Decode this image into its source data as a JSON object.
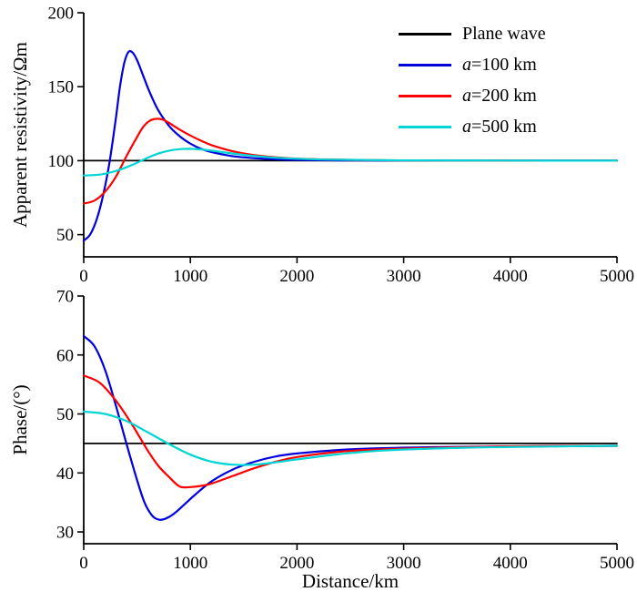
{
  "figure": {
    "background": "#ffffff"
  },
  "legend": {
    "position": "upper-right-of-top-panel",
    "entries": [
      {
        "color": "#000000",
        "parts": [
          {
            "text": "Plane wave",
            "italic": false
          }
        ]
      },
      {
        "color": "#0000dd",
        "parts": [
          {
            "text": "a",
            "italic": true
          },
          {
            "text": "=100 km",
            "italic": false
          }
        ]
      },
      {
        "color": "#ff0000",
        "parts": [
          {
            "text": "a",
            "italic": true
          },
          {
            "text": "=200 km",
            "italic": false
          }
        ]
      },
      {
        "color": "#00d5d5",
        "parts": [
          {
            "text": "a",
            "italic": true
          },
          {
            "text": "=500 km",
            "italic": false
          }
        ]
      }
    ]
  },
  "chart_data": [
    {
      "type": "line",
      "title": "",
      "ylabel": "Apparent resistivity/Ωm",
      "xlabel": "",
      "xlim": [
        0,
        5000
      ],
      "xticks": [
        0,
        1000,
        2000,
        3000,
        4000,
        5000
      ],
      "ylim": [
        35,
        200
      ],
      "yticks": [
        50,
        100,
        150,
        200
      ],
      "grid": false,
      "series": [
        {
          "name": "Plane wave",
          "color": "#000000",
          "points": [
            [
              0,
              100
            ],
            [
              5000,
              100
            ]
          ]
        },
        {
          "name": "a=100 km",
          "color": "#0000dd",
          "points": [
            [
              0,
              46
            ],
            [
              60,
              50
            ],
            [
              120,
              60
            ],
            [
              180,
              76
            ],
            [
              240,
              98
            ],
            [
              300,
              128
            ],
            [
              340,
              150
            ],
            [
              380,
              166
            ],
            [
              420,
              173.5
            ],
            [
              460,
              173
            ],
            [
              500,
              168
            ],
            [
              560,
              157
            ],
            [
              620,
              146
            ],
            [
              700,
              134
            ],
            [
              800,
              123.5
            ],
            [
              900,
              116.5
            ],
            [
              1000,
              111.5
            ],
            [
              1100,
              108
            ],
            [
              1200,
              105.8
            ],
            [
              1400,
              103
            ],
            [
              1600,
              101.7
            ],
            [
              1800,
              100.9
            ],
            [
              2000,
              100.5
            ],
            [
              2400,
              100.2
            ],
            [
              3000,
              100.05
            ],
            [
              4000,
              100
            ],
            [
              5000,
              100
            ]
          ]
        },
        {
          "name": "a=200 km",
          "color": "#ff0000",
          "points": [
            [
              0,
              71
            ],
            [
              100,
              73
            ],
            [
              200,
              79
            ],
            [
              300,
              89
            ],
            [
              400,
              103
            ],
            [
              500,
              116
            ],
            [
              560,
              123
            ],
            [
              620,
              127
            ],
            [
              680,
              128.3
            ],
            [
              740,
              127.8
            ],
            [
              800,
              125.5
            ],
            [
              900,
              121
            ],
            [
              1000,
              117
            ],
            [
              1100,
              113.5
            ],
            [
              1200,
              110.5
            ],
            [
              1400,
              106.3
            ],
            [
              1600,
              103.8
            ],
            [
              1800,
              102.3
            ],
            [
              2000,
              101.4
            ],
            [
              2400,
              100.6
            ],
            [
              3000,
              100.15
            ],
            [
              4000,
              100
            ],
            [
              5000,
              100
            ]
          ]
        },
        {
          "name": "a=500 km",
          "color": "#00d5d5",
          "points": [
            [
              0,
              90
            ],
            [
              150,
              90.6
            ],
            [
              300,
              93
            ],
            [
              450,
              97
            ],
            [
              600,
              102
            ],
            [
              700,
              104.8
            ],
            [
              800,
              106.8
            ],
            [
              900,
              107.8
            ],
            [
              1000,
              108
            ],
            [
              1100,
              107.6
            ],
            [
              1200,
              106.8
            ],
            [
              1400,
              104.8
            ],
            [
              1600,
              103.2
            ],
            [
              1800,
              102
            ],
            [
              2000,
              101.3
            ],
            [
              2400,
              100.6
            ],
            [
              3000,
              100.2
            ],
            [
              4000,
              100.05
            ],
            [
              5000,
              100
            ]
          ]
        }
      ]
    },
    {
      "type": "line",
      "title": "",
      "ylabel": "Phase/(°)",
      "xlabel": "Distance/km",
      "xlim": [
        0,
        5000
      ],
      "xticks": [
        0,
        1000,
        2000,
        3000,
        4000,
        5000
      ],
      "ylim": [
        28,
        70
      ],
      "yticks": [
        30,
        40,
        50,
        60,
        70
      ],
      "grid": false,
      "series": [
        {
          "name": "Plane wave",
          "color": "#000000",
          "points": [
            [
              0,
              45
            ],
            [
              5000,
              45
            ]
          ]
        },
        {
          "name": "a=100 km",
          "color": "#0000dd",
          "points": [
            [
              0,
              63.2
            ],
            [
              100,
              61.5
            ],
            [
              200,
              57.5
            ],
            [
              300,
              51.5
            ],
            [
              400,
              45
            ],
            [
              500,
              38.8
            ],
            [
              570,
              35
            ],
            [
              640,
              32.8
            ],
            [
              700,
              32.1
            ],
            [
              760,
              32.2
            ],
            [
              840,
              33
            ],
            [
              940,
              34.6
            ],
            [
              1050,
              36.4
            ],
            [
              1200,
              38.6
            ],
            [
              1400,
              40.6
            ],
            [
              1600,
              41.9
            ],
            [
              1800,
              42.8
            ],
            [
              2000,
              43.3
            ],
            [
              2400,
              43.9
            ],
            [
              2800,
              44.2
            ],
            [
              3400,
              44.4
            ],
            [
              4000,
              44.5
            ],
            [
              5000,
              44.6
            ]
          ]
        },
        {
          "name": "a=200 km",
          "color": "#ff0000",
          "points": [
            [
              0,
              56.5
            ],
            [
              150,
              55.3
            ],
            [
              300,
              52.3
            ],
            [
              450,
              48.3
            ],
            [
              600,
              43.8
            ],
            [
              700,
              41.2
            ],
            [
              800,
              39.3
            ],
            [
              900,
              37.7
            ],
            [
              1000,
              37.6
            ],
            [
              1100,
              37.8
            ],
            [
              1200,
              38.2
            ],
            [
              1400,
              39.5
            ],
            [
              1600,
              40.8
            ],
            [
              1800,
              41.9
            ],
            [
              2000,
              42.7
            ],
            [
              2400,
              43.6
            ],
            [
              2800,
              44
            ],
            [
              3400,
              44.3
            ],
            [
              4000,
              44.5
            ],
            [
              5000,
              44.6
            ]
          ]
        },
        {
          "name": "a=500 km",
          "color": "#00d5d5",
          "points": [
            [
              0,
              50.4
            ],
            [
              200,
              50
            ],
            [
              400,
              48.8
            ],
            [
              600,
              46.9
            ],
            [
              800,
              44.9
            ],
            [
              1000,
              43.1
            ],
            [
              1200,
              41.9
            ],
            [
              1400,
              41.4
            ],
            [
              1600,
              41.4
            ],
            [
              1800,
              41.8
            ],
            [
              2000,
              42.3
            ],
            [
              2400,
              43.2
            ],
            [
              2800,
              43.8
            ],
            [
              3400,
              44.2
            ],
            [
              4000,
              44.4
            ],
            [
              5000,
              44.6
            ]
          ]
        }
      ]
    }
  ]
}
